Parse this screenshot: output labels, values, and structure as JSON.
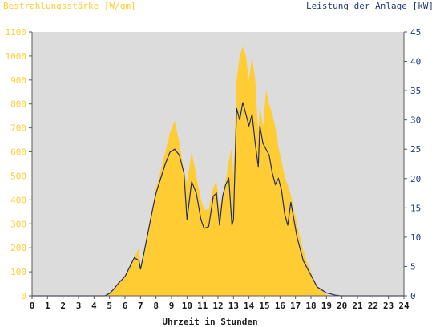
{
  "chart_data": {
    "type": "area",
    "left_axis_title": "Bestrahlungsstärke [W/qm]",
    "right_axis_title": "Leistung der Anlage [kW]",
    "xlabel": "Uhrzeit in Stunden",
    "xlim": [
      0,
      24
    ],
    "x_ticks": [
      "0",
      "1",
      "2",
      "3",
      "4",
      "5",
      "6",
      "7",
      "8",
      "9",
      "10",
      "11",
      "12",
      "13",
      "14",
      "15",
      "16",
      "17",
      "18",
      "19",
      "20",
      "21",
      "22",
      "23",
      "24"
    ],
    "ylim_left": [
      0,
      1100
    ],
    "y_ticks_left": [
      "0",
      "100",
      "200",
      "300",
      "400",
      "500",
      "600",
      "700",
      "800",
      "900",
      "1000",
      "1100"
    ],
    "ylim_right": [
      0,
      45
    ],
    "y_ticks_right": [
      "0",
      "5",
      "10",
      "15",
      "20",
      "25",
      "30",
      "35",
      "40",
      "45"
    ],
    "grid": false,
    "colors": {
      "plot_bg": "#dcdcdc",
      "irradiance_fill": "#ffcc33",
      "power_line": "#1f2f66",
      "left_axis_text": "#ffcc33",
      "right_axis_text": "#1f3a7a"
    },
    "series": [
      {
        "name": "Bestrahlungsstärke [W/qm]",
        "axis": "left",
        "style": "area",
        "x": [
          0,
          4.6,
          5.0,
          5.3,
          5.6,
          6.0,
          6.3,
          6.6,
          6.9,
          7.0,
          7.2,
          7.5,
          7.8,
          8.0,
          8.3,
          8.6,
          8.9,
          9.2,
          9.5,
          9.8,
          10.0,
          10.3,
          10.6,
          10.9,
          11.1,
          11.4,
          11.7,
          11.9,
          12.1,
          12.3,
          12.5,
          12.7,
          12.9,
          13.0,
          13.2,
          13.4,
          13.6,
          13.8,
          14.0,
          14.2,
          14.4,
          14.6,
          14.7,
          14.9,
          15.1,
          15.3,
          15.5,
          15.7,
          15.9,
          16.1,
          16.3,
          16.5,
          16.7,
          16.9,
          17.1,
          17.3,
          17.5,
          17.8,
          18.1,
          18.4,
          18.7,
          19.0,
          19.3,
          19.6,
          19.9,
          20.2,
          20.5,
          24
        ],
        "y": [
          0,
          0,
          10,
          30,
          55,
          80,
          120,
          160,
          200,
          120,
          180,
          280,
          380,
          450,
          520,
          600,
          680,
          730,
          640,
          520,
          470,
          600,
          500,
          400,
          360,
          360,
          450,
          480,
          360,
          420,
          480,
          560,
          620,
          480,
          900,
          1000,
          1040,
          1000,
          900,
          1000,
          900,
          680,
          800,
          700,
          860,
          800,
          760,
          700,
          620,
          560,
          500,
          460,
          420,
          360,
          300,
          240,
          190,
          130,
          80,
          40,
          20,
          5,
          0,
          0,
          0,
          0,
          0,
          0
        ]
      },
      {
        "name": "Leistung der Anlage [kW]",
        "axis": "right",
        "style": "line",
        "x": [
          0,
          4.7,
          5.0,
          5.3,
          5.6,
          6.0,
          6.3,
          6.6,
          6.9,
          7.0,
          7.2,
          7.5,
          7.8,
          8.0,
          8.3,
          8.6,
          8.9,
          9.2,
          9.5,
          9.8,
          10.0,
          10.3,
          10.6,
          10.9,
          11.1,
          11.4,
          11.7,
          11.9,
          12.1,
          12.3,
          12.5,
          12.7,
          12.9,
          13.0,
          13.2,
          13.4,
          13.6,
          13.8,
          14.0,
          14.2,
          14.4,
          14.6,
          14.7,
          14.9,
          15.1,
          15.3,
          15.5,
          15.7,
          15.9,
          16.1,
          16.3,
          16.5,
          16.7,
          16.9,
          17.1,
          17.3,
          17.5,
          17.8,
          18.1,
          18.4,
          18.7,
          19.0,
          19.3,
          19.6,
          19.9,
          20.2,
          20.5,
          24
        ],
        "y": [
          0,
          0,
          0.4,
          1.2,
          2.2,
          3.3,
          4.9,
          6.5,
          6.0,
          4.5,
          7.0,
          11.0,
          15.0,
          17.5,
          20.0,
          22.5,
          24.5,
          25.0,
          24.0,
          21.0,
          13.0,
          19.5,
          17.5,
          13.0,
          11.5,
          11.8,
          17.0,
          17.5,
          12.0,
          17.0,
          19.0,
          20.0,
          12.0,
          13.0,
          32.0,
          30.0,
          33.0,
          31.0,
          29.0,
          31.0,
          26.0,
          22.0,
          29.0,
          26.0,
          25.0,
          24.0,
          21.0,
          19.0,
          20.0,
          18.0,
          14.0,
          12.0,
          16.0,
          13.0,
          10.0,
          8.0,
          6.0,
          4.5,
          3.0,
          1.5,
          1.0,
          0.5,
          0.3,
          0.1,
          0,
          0,
          0,
          0
        ]
      }
    ]
  }
}
